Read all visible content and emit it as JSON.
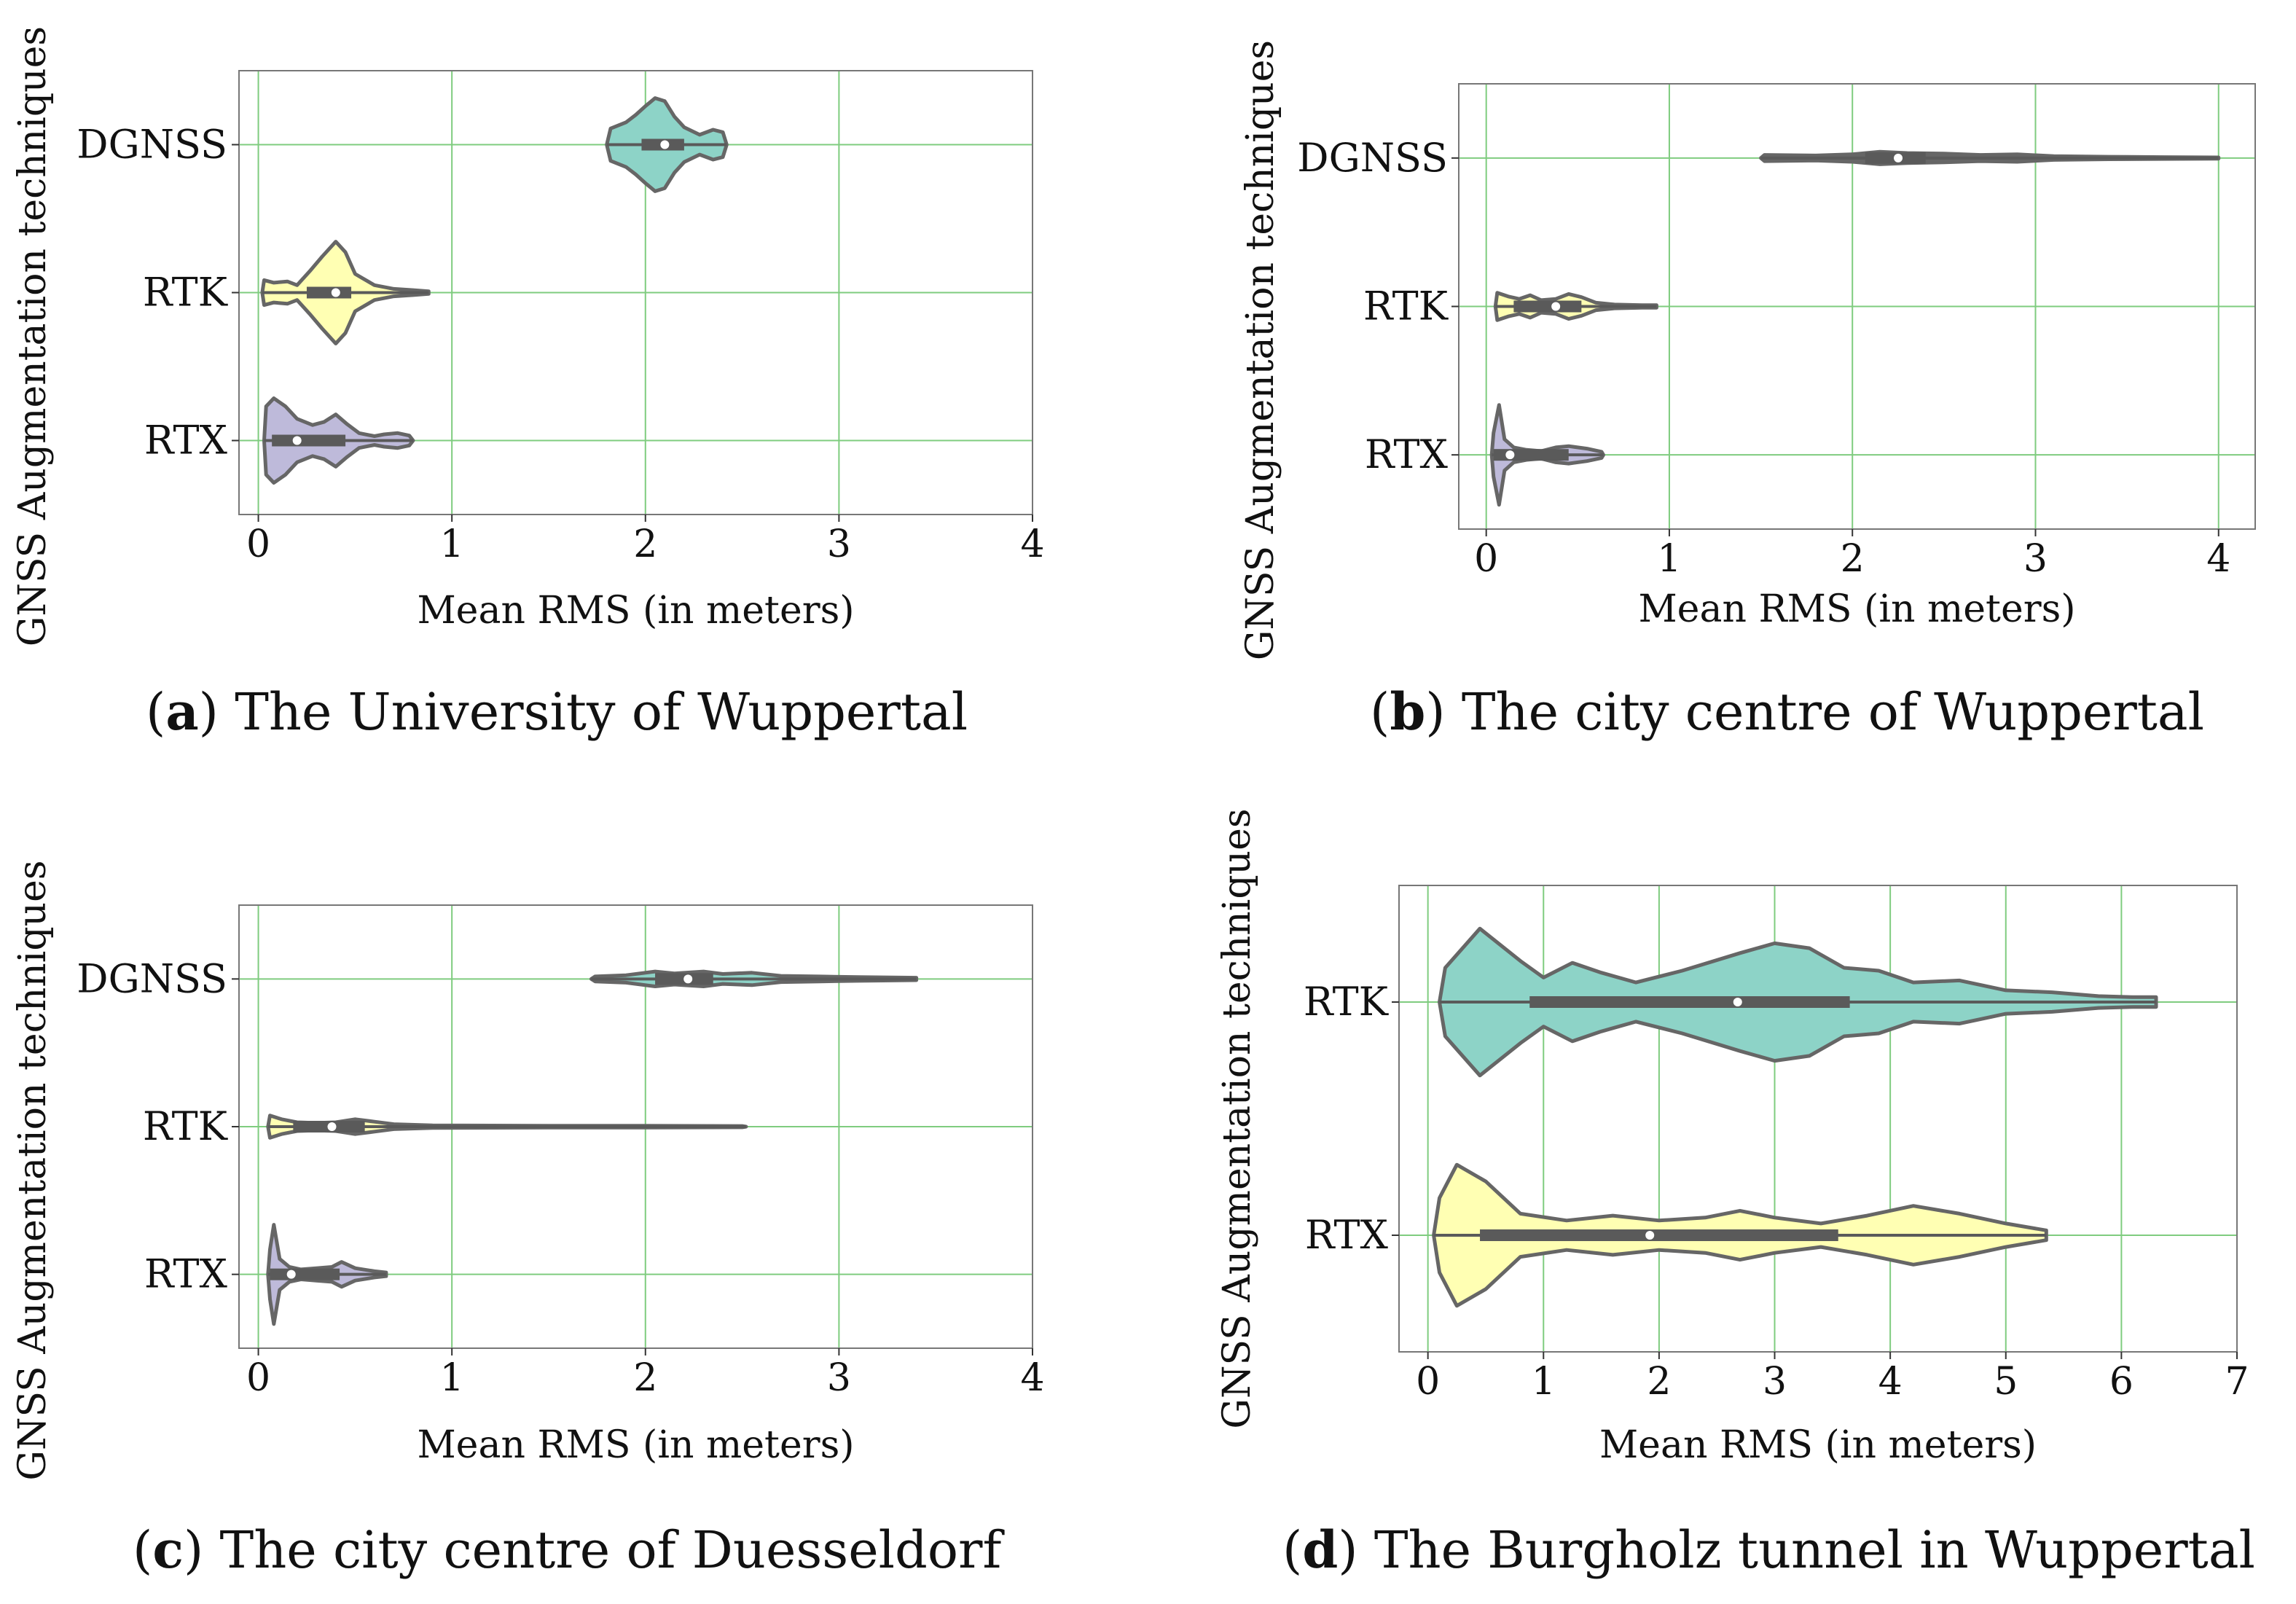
{
  "colors": {
    "teal": "#8dd3c7",
    "yellow": "#ffffb3",
    "purple": "#bebada",
    "outline": "#666666",
    "grid": "#7fcc7f",
    "box": "#5a5a5a"
  },
  "chart_data": [
    {
      "id": "a",
      "type": "violin",
      "caption_letter": "a",
      "caption_text": " The University of Wuppertal",
      "xlabel": "Mean RMS (in meters)",
      "ylabel": "GNSS Augmentation techniques",
      "xlim": [
        -0.1,
        4
      ],
      "xticks": [
        0,
        1,
        2,
        3,
        4
      ],
      "grid": true,
      "categories": [
        "DGNSS",
        "RTK",
        "RTX"
      ],
      "violins": [
        {
          "label": "DGNSS",
          "color": "teal",
          "profile": [
            [
              1.8,
              0
            ],
            [
              1.82,
              0.26
            ],
            [
              1.9,
              0.36
            ],
            [
              1.95,
              0.48
            ],
            [
              2.0,
              0.62
            ],
            [
              2.05,
              0.75
            ],
            [
              2.1,
              0.7
            ],
            [
              2.15,
              0.45
            ],
            [
              2.2,
              0.28
            ],
            [
              2.28,
              0.16
            ],
            [
              2.35,
              0.24
            ],
            [
              2.4,
              0.2
            ],
            [
              2.42,
              0
            ]
          ],
          "q1": 1.98,
          "median": 2.1,
          "q3": 2.2,
          "wmin": 1.8,
          "wmax": 2.42
        },
        {
          "label": "RTK",
          "color": "yellow",
          "profile": [
            [
              0.02,
              0
            ],
            [
              0.03,
              0.2
            ],
            [
              0.08,
              0.16
            ],
            [
              0.15,
              0.18
            ],
            [
              0.2,
              0.12
            ],
            [
              0.27,
              0.36
            ],
            [
              0.33,
              0.58
            ],
            [
              0.4,
              0.82
            ],
            [
              0.45,
              0.65
            ],
            [
              0.5,
              0.3
            ],
            [
              0.6,
              0.12
            ],
            [
              0.7,
              0.06
            ],
            [
              0.8,
              0.04
            ],
            [
              0.88,
              0.02
            ],
            [
              0.88,
              0
            ]
          ],
          "q1": 0.25,
          "median": 0.4,
          "q3": 0.48,
          "wmin": 0.02,
          "wmax": 0.88
        },
        {
          "label": "RTX",
          "color": "purple",
          "profile": [
            [
              0.03,
              0
            ],
            [
              0.04,
              0.55
            ],
            [
              0.08,
              0.68
            ],
            [
              0.14,
              0.55
            ],
            [
              0.2,
              0.35
            ],
            [
              0.28,
              0.25
            ],
            [
              0.34,
              0.3
            ],
            [
              0.4,
              0.42
            ],
            [
              0.46,
              0.26
            ],
            [
              0.52,
              0.12
            ],
            [
              0.6,
              0.07
            ],
            [
              0.65,
              0.1
            ],
            [
              0.72,
              0.12
            ],
            [
              0.78,
              0.08
            ],
            [
              0.8,
              0
            ]
          ],
          "q1": 0.07,
          "median": 0.2,
          "q3": 0.45,
          "wmin": 0.03,
          "wmax": 0.8
        }
      ]
    },
    {
      "id": "b",
      "type": "violin",
      "caption_letter": "b",
      "caption_text": " The city centre of Wuppertal",
      "xlabel": "Mean RMS (in meters)",
      "ylabel": "GNSS Augmentation techniques",
      "xlim": [
        -0.15,
        4.2
      ],
      "xticks": [
        0,
        1,
        2,
        3,
        4
      ],
      "grid": true,
      "categories": [
        "DGNSS",
        "RTK",
        "RTX"
      ],
      "violins": [
        {
          "label": "DGNSS",
          "color": "outline",
          "profile": [
            [
              1.5,
              0
            ],
            [
              1.52,
              0.05
            ],
            [
              1.8,
              0.04
            ],
            [
              2.0,
              0.06
            ],
            [
              2.15,
              0.1
            ],
            [
              2.3,
              0.08
            ],
            [
              2.5,
              0.07
            ],
            [
              2.7,
              0.05
            ],
            [
              2.9,
              0.06
            ],
            [
              3.1,
              0.03
            ],
            [
              3.4,
              0.02
            ],
            [
              3.7,
              0.015
            ],
            [
              4.0,
              0.01
            ],
            [
              4.0,
              0
            ]
          ],
          "q1": 2.07,
          "median": 2.25,
          "q3": 2.4,
          "wmin": 1.5,
          "wmax": 4.0
        },
        {
          "label": "RTK",
          "color": "yellow",
          "profile": [
            [
              0.05,
              0
            ],
            [
              0.06,
              0.22
            ],
            [
              0.12,
              0.16
            ],
            [
              0.18,
              0.12
            ],
            [
              0.24,
              0.18
            ],
            [
              0.3,
              0.1
            ],
            [
              0.38,
              0.12
            ],
            [
              0.45,
              0.2
            ],
            [
              0.52,
              0.15
            ],
            [
              0.6,
              0.06
            ],
            [
              0.7,
              0.03
            ],
            [
              0.85,
              0.02
            ],
            [
              0.93,
              0.02
            ],
            [
              0.93,
              0
            ]
          ],
          "q1": 0.15,
          "median": 0.38,
          "q3": 0.52,
          "wmin": 0.05,
          "wmax": 0.93
        },
        {
          "label": "RTX",
          "color": "purple",
          "profile": [
            [
              0.03,
              0
            ],
            [
              0.04,
              0.35
            ],
            [
              0.07,
              0.8
            ],
            [
              0.1,
              0.25
            ],
            [
              0.15,
              0.12
            ],
            [
              0.22,
              0.08
            ],
            [
              0.3,
              0.06
            ],
            [
              0.38,
              0.12
            ],
            [
              0.45,
              0.14
            ],
            [
              0.55,
              0.1
            ],
            [
              0.63,
              0.05
            ],
            [
              0.64,
              0
            ]
          ],
          "q1": 0.04,
          "median": 0.13,
          "q3": 0.45,
          "wmin": 0.03,
          "wmax": 0.64
        }
      ]
    },
    {
      "id": "c",
      "type": "violin",
      "caption_letter": "c",
      "caption_text": " The city centre of Duesseldorf",
      "xlabel": "Mean RMS (in meters)",
      "ylabel": "GNSS Augmentation techniques",
      "xlim": [
        -0.1,
        4
      ],
      "xticks": [
        0,
        1,
        2,
        3,
        4
      ],
      "grid": true,
      "categories": [
        "DGNSS",
        "RTK",
        "RTX"
      ],
      "violins": [
        {
          "label": "DGNSS",
          "color": "teal",
          "profile": [
            [
              1.72,
              0
            ],
            [
              1.74,
              0.04
            ],
            [
              1.9,
              0.06
            ],
            [
              2.05,
              0.12
            ],
            [
              2.15,
              0.09
            ],
            [
              2.3,
              0.12
            ],
            [
              2.4,
              0.08
            ],
            [
              2.55,
              0.1
            ],
            [
              2.7,
              0.05
            ],
            [
              2.9,
              0.04
            ],
            [
              3.1,
              0.03
            ],
            [
              3.4,
              0.02
            ],
            [
              3.4,
              0
            ]
          ],
          "q1": 2.05,
          "median": 2.22,
          "q3": 2.35,
          "wmin": 1.72,
          "wmax": 3.4
        },
        {
          "label": "RTK",
          "color": "yellow",
          "profile": [
            [
              0.05,
              0
            ],
            [
              0.06,
              0.18
            ],
            [
              0.12,
              0.12
            ],
            [
              0.2,
              0.07
            ],
            [
              0.3,
              0.06
            ],
            [
              0.4,
              0.07
            ],
            [
              0.5,
              0.12
            ],
            [
              0.6,
              0.08
            ],
            [
              0.7,
              0.04
            ],
            [
              0.9,
              0.02
            ],
            [
              1.5,
              0.015
            ],
            [
              2.0,
              0.015
            ],
            [
              2.5,
              0.01
            ],
            [
              2.52,
              0
            ]
          ],
          "q1": 0.18,
          "median": 0.38,
          "q3": 0.55,
          "wmin": 0.05,
          "wmax": 2.52
        },
        {
          "label": "RTX",
          "color": "purple",
          "profile": [
            [
              0.05,
              0
            ],
            [
              0.06,
              0.4
            ],
            [
              0.08,
              0.8
            ],
            [
              0.11,
              0.25
            ],
            [
              0.16,
              0.12
            ],
            [
              0.22,
              0.08
            ],
            [
              0.3,
              0.1
            ],
            [
              0.38,
              0.12
            ],
            [
              0.43,
              0.2
            ],
            [
              0.5,
              0.1
            ],
            [
              0.6,
              0.05
            ],
            [
              0.66,
              0.03
            ],
            [
              0.66,
              0
            ]
          ],
          "q1": 0.06,
          "median": 0.17,
          "q3": 0.42,
          "wmin": 0.05,
          "wmax": 0.66
        }
      ]
    },
    {
      "id": "d",
      "type": "violin",
      "caption_letter": "d",
      "caption_text": " The Burgholz tunnel in Wuppertal",
      "xlabel": "Mean RMS (in meters)",
      "ylabel": "GNSS Augmentation techniques",
      "xlim": [
        -0.25,
        7
      ],
      "xticks": [
        0,
        1,
        2,
        3,
        4,
        5,
        6,
        7
      ],
      "grid": true,
      "categories": [
        "RTK",
        "RTX"
      ],
      "violins": [
        {
          "label": "RTK",
          "color": "teal",
          "profile": [
            [
              0.1,
              0
            ],
            [
              0.15,
              0.35
            ],
            [
              0.45,
              0.75
            ],
            [
              0.8,
              0.42
            ],
            [
              1.0,
              0.25
            ],
            [
              1.25,
              0.4
            ],
            [
              1.5,
              0.3
            ],
            [
              1.8,
              0.2
            ],
            [
              2.2,
              0.32
            ],
            [
              2.7,
              0.5
            ],
            [
              3.0,
              0.6
            ],
            [
              3.3,
              0.55
            ],
            [
              3.6,
              0.35
            ],
            [
              3.9,
              0.32
            ],
            [
              4.2,
              0.2
            ],
            [
              4.6,
              0.22
            ],
            [
              5.0,
              0.12
            ],
            [
              5.4,
              0.1
            ],
            [
              5.8,
              0.06
            ],
            [
              6.1,
              0.05
            ],
            [
              6.3,
              0.05
            ],
            [
              6.3,
              0
            ]
          ],
          "q1": 0.88,
          "median": 2.68,
          "q3": 3.65,
          "wmin": 0.1,
          "wmax": 6.3
        },
        {
          "label": "RTX",
          "color": "yellow",
          "profile": [
            [
              0.05,
              0
            ],
            [
              0.1,
              0.38
            ],
            [
              0.25,
              0.72
            ],
            [
              0.5,
              0.55
            ],
            [
              0.8,
              0.22
            ],
            [
              1.2,
              0.15
            ],
            [
              1.6,
              0.2
            ],
            [
              2.0,
              0.15
            ],
            [
              2.4,
              0.18
            ],
            [
              2.7,
              0.25
            ],
            [
              3.0,
              0.18
            ],
            [
              3.4,
              0.12
            ],
            [
              3.8,
              0.2
            ],
            [
              4.2,
              0.3
            ],
            [
              4.6,
              0.22
            ],
            [
              5.0,
              0.12
            ],
            [
              5.35,
              0.05
            ],
            [
              5.35,
              0
            ]
          ],
          "q1": 0.45,
          "median": 1.92,
          "q3": 3.55,
          "wmin": 0.05,
          "wmax": 5.35
        }
      ]
    }
  ]
}
